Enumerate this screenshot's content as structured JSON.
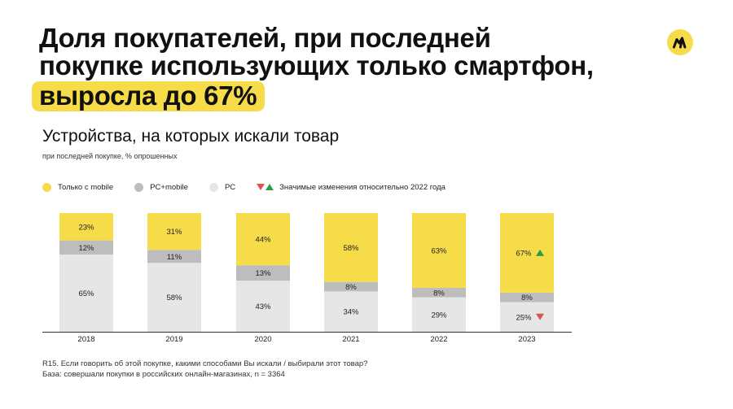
{
  "header": {
    "title_line1": "Доля покупателей, при последней",
    "title_line2": "покупке использующих только смартфон,",
    "title_highlight": "выросла до 67%"
  },
  "logo": {
    "icon": "yandex-market-logo-icon"
  },
  "subtitle": "Устройства, на которых искали товар",
  "note": "при последней покупке, % опрошенных",
  "legend": {
    "mobile": "Только с mobile",
    "pc_mobile": "PC+mobile",
    "pc": "PC",
    "change": "Значимые изменения относительно 2022 года"
  },
  "chart_data": {
    "type": "bar",
    "stacked": true,
    "normalized": true,
    "title": "Устройства, на которых искали товар",
    "subtitle": "при последней покупке, % опрошенных",
    "categories": [
      "2018",
      "2019",
      "2020",
      "2021",
      "2022",
      "2023"
    ],
    "series": [
      {
        "name": "PC",
        "color": "#e6e6e6",
        "values": [
          65,
          58,
          43,
          34,
          29,
          25
        ],
        "labels": [
          "65%",
          "58%",
          "43%",
          "34%",
          "29%",
          "25%"
        ]
      },
      {
        "name": "PC+mobile",
        "color": "#bdbdbd",
        "values": [
          12,
          11,
          13,
          8,
          8,
          8
        ],
        "labels": [
          "12%",
          "11%",
          "13%",
          "8%",
          "8%",
          "8%"
        ]
      },
      {
        "name": "Только с mobile",
        "color": "#f7dc4a",
        "values": [
          23,
          31,
          44,
          58,
          63,
          67
        ],
        "labels": [
          "23%",
          "31%",
          "44%",
          "58%",
          "63%",
          "67%"
        ]
      }
    ],
    "significance": [
      {
        "category": "2023",
        "series": "Только с mobile",
        "direction": "up"
      },
      {
        "category": "2023",
        "series": "PC",
        "direction": "down"
      }
    ],
    "colors": {
      "up": "#2e9c4d",
      "down": "#d9534f",
      "axis": "#333333"
    },
    "ylim": [
      0,
      100
    ],
    "xlabel": "",
    "ylabel": ""
  },
  "footnote": {
    "question": "R15. Если говорить об этой покупке, какими способами Вы искали / выбирали этот товар?",
    "base": "База: совершали покупки в российских онлайн-магазинах, n = 3364"
  }
}
